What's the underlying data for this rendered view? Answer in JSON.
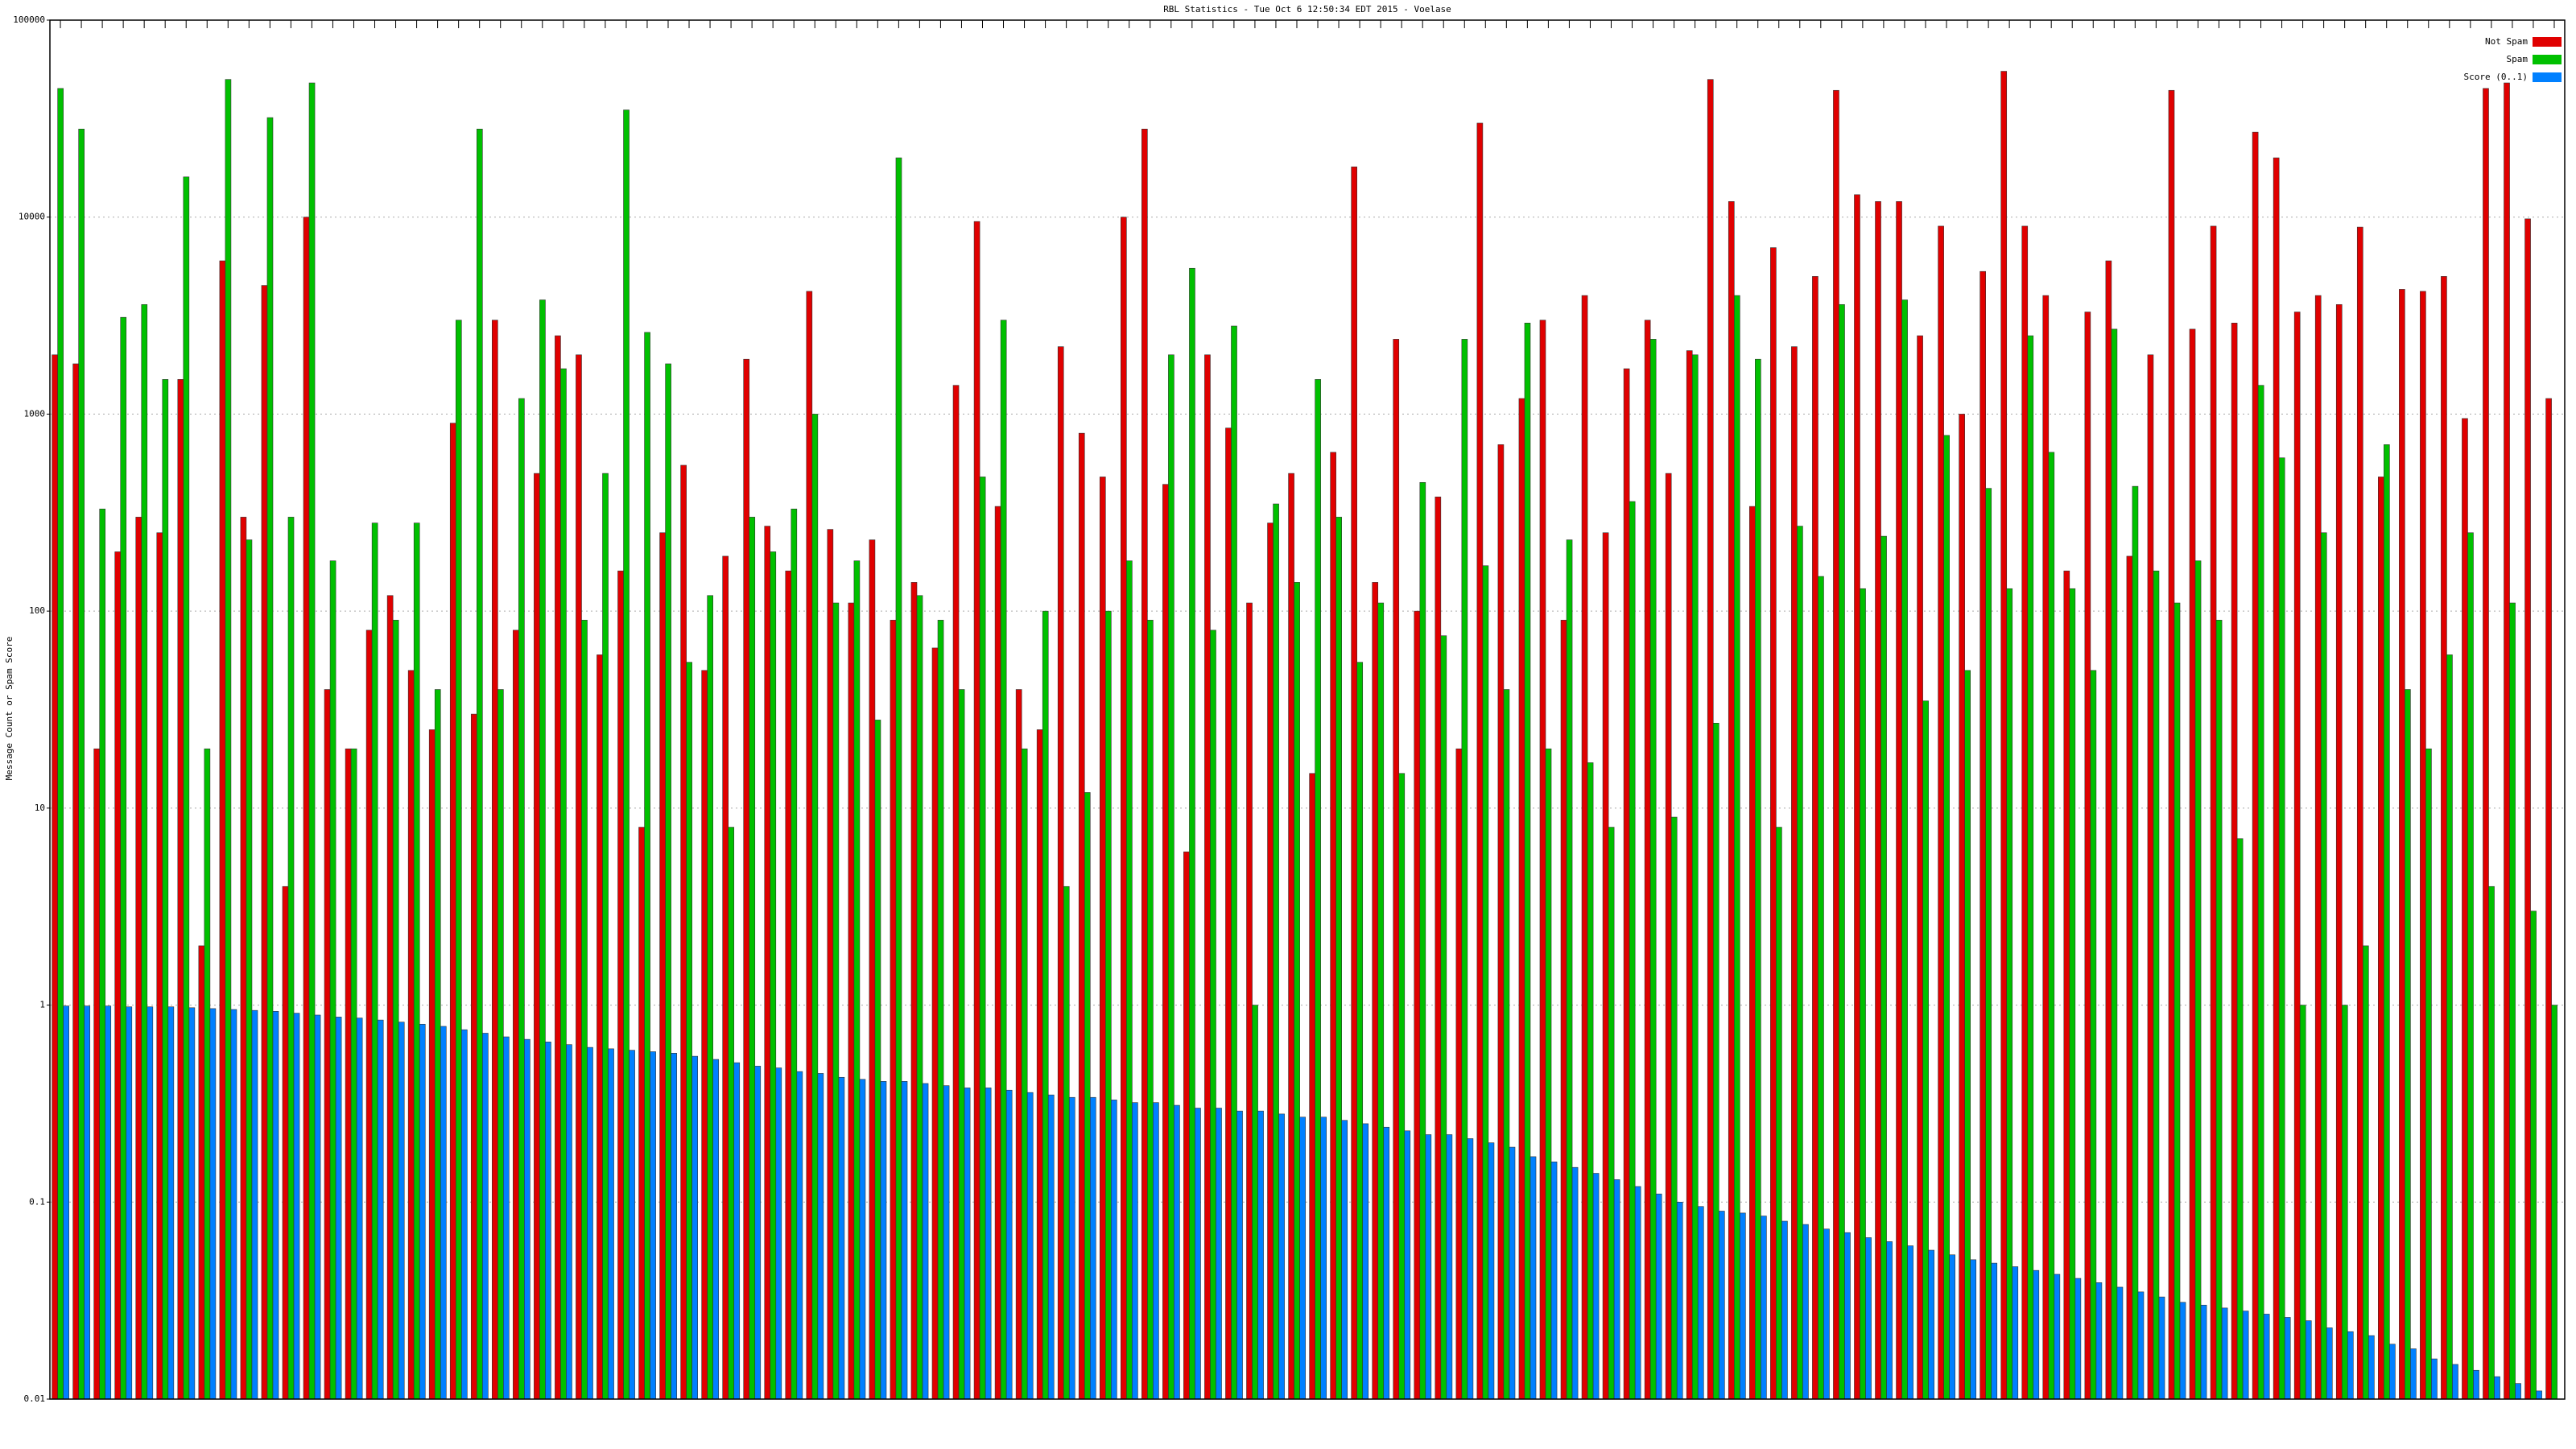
{
  "chart_data": {
    "type": "bar",
    "title": "RBL Statistics - Tue Oct 6 12:50:34 EDT 2015 - Voelase",
    "y_label": "Message Count or Spam Score",
    "log_scale": true,
    "grid": true,
    "legend": "top-right",
    "ylim": [
      0.01,
      100000
    ],
    "yticks": [
      0.01,
      0.1,
      1,
      10,
      100,
      1000,
      10000,
      100000
    ],
    "series": [
      {
        "name": "Not Spam",
        "color": "#e00000",
        "values": [
          2000,
          1800,
          20,
          200,
          300,
          250,
          1500,
          2,
          6000,
          300,
          4500,
          4,
          10000,
          40,
          20,
          80,
          120,
          50,
          25,
          900,
          30,
          3000,
          80,
          500,
          2500,
          2000,
          60,
          160,
          8,
          250,
          550,
          50,
          190,
          1900,
          270,
          160,
          4200,
          260,
          110,
          230,
          90,
          140,
          65,
          1400,
          9500,
          340,
          40,
          25,
          2200,
          800,
          480,
          10000,
          28000,
          440,
          6,
          2000,
          850,
          110,
          280,
          500,
          15,
          640,
          18000,
          140,
          2400,
          100,
          380,
          20,
          30000,
          700,
          1200,
          3000,
          90,
          4000,
          250,
          1700,
          3000,
          500,
          2100,
          50000,
          12000,
          340,
          7000,
          2200,
          5000,
          44000,
          13000,
          12000,
          12000,
          2500,
          9000,
          1000,
          5300,
          55000,
          9000,
          4000,
          160,
          3300,
          6000,
          190,
          2000,
          44000,
          2700,
          9000,
          2900,
          27000,
          20000,
          3300,
          4000,
          3600,
          8900,
          480,
          4300,
          4200,
          5000,
          950,
          45000,
          48000,
          9800,
          1200
        ]
      },
      {
        "name": "Spam",
        "color": "#00c000",
        "values": [
          45000,
          28000,
          330,
          3100,
          3600,
          1500,
          16000,
          20,
          50000,
          230,
          32000,
          300,
          48000,
          180,
          20,
          280,
          90,
          280,
          40,
          3000,
          28000,
          40,
          1200,
          3800,
          1700,
          90,
          500,
          35000,
          2600,
          1800,
          55,
          120,
          8,
          300,
          200,
          330,
          1000,
          110,
          180,
          28,
          20000,
          120,
          90,
          40,
          480,
          3000,
          20,
          100,
          4,
          12,
          100,
          180,
          90,
          2000,
          5500,
          80,
          2800,
          1,
          350,
          140,
          1500,
          300,
          55,
          110,
          15,
          450,
          75,
          2400,
          170,
          40,
          2900,
          20,
          230,
          17,
          8,
          360,
          2400,
          9,
          2000,
          27,
          4000,
          1900,
          8,
          270,
          150,
          3600,
          130,
          240,
          3800,
          35,
          780,
          50,
          420,
          130,
          2500,
          640,
          130,
          50,
          2700,
          430,
          160,
          110,
          180,
          90,
          7,
          1400,
          600,
          1,
          250,
          1,
          2,
          700,
          40,
          20,
          60,
          250,
          4,
          110,
          3,
          1
        ]
      },
      {
        "name": "Score (0..1)",
        "color": "#0080ff",
        "values": [
          0.99,
          0.99,
          0.99,
          0.98,
          0.98,
          0.98,
          0.97,
          0.96,
          0.95,
          0.94,
          0.93,
          0.91,
          0.89,
          0.87,
          0.86,
          0.84,
          0.82,
          0.8,
          0.78,
          0.75,
          0.72,
          0.69,
          0.67,
          0.65,
          0.63,
          0.61,
          0.6,
          0.59,
          0.58,
          0.57,
          0.55,
          0.53,
          0.51,
          0.49,
          0.48,
          0.46,
          0.45,
          0.43,
          0.42,
          0.41,
          0.41,
          0.4,
          0.39,
          0.38,
          0.38,
          0.37,
          0.36,
          0.35,
          0.34,
          0.34,
          0.33,
          0.32,
          0.32,
          0.31,
          0.3,
          0.3,
          0.29,
          0.29,
          0.28,
          0.27,
          0.27,
          0.26,
          0.25,
          0.24,
          0.23,
          0.22,
          0.22,
          0.21,
          0.2,
          0.19,
          0.17,
          0.16,
          0.15,
          0.14,
          0.13,
          0.12,
          0.11,
          0.1,
          0.095,
          0.09,
          0.088,
          0.085,
          0.08,
          0.077,
          0.073,
          0.07,
          0.066,
          0.063,
          0.06,
          0.057,
          0.054,
          0.051,
          0.049,
          0.047,
          0.045,
          0.043,
          0.041,
          0.039,
          0.037,
          0.035,
          0.033,
          0.031,
          0.03,
          0.029,
          0.028,
          0.027,
          0.026,
          0.025,
          0.023,
          0.022,
          0.021,
          0.019,
          0.018,
          0.016,
          0.015,
          0.014,
          0.013,
          0.012,
          0.011,
          0.01
        ]
      }
    ]
  }
}
